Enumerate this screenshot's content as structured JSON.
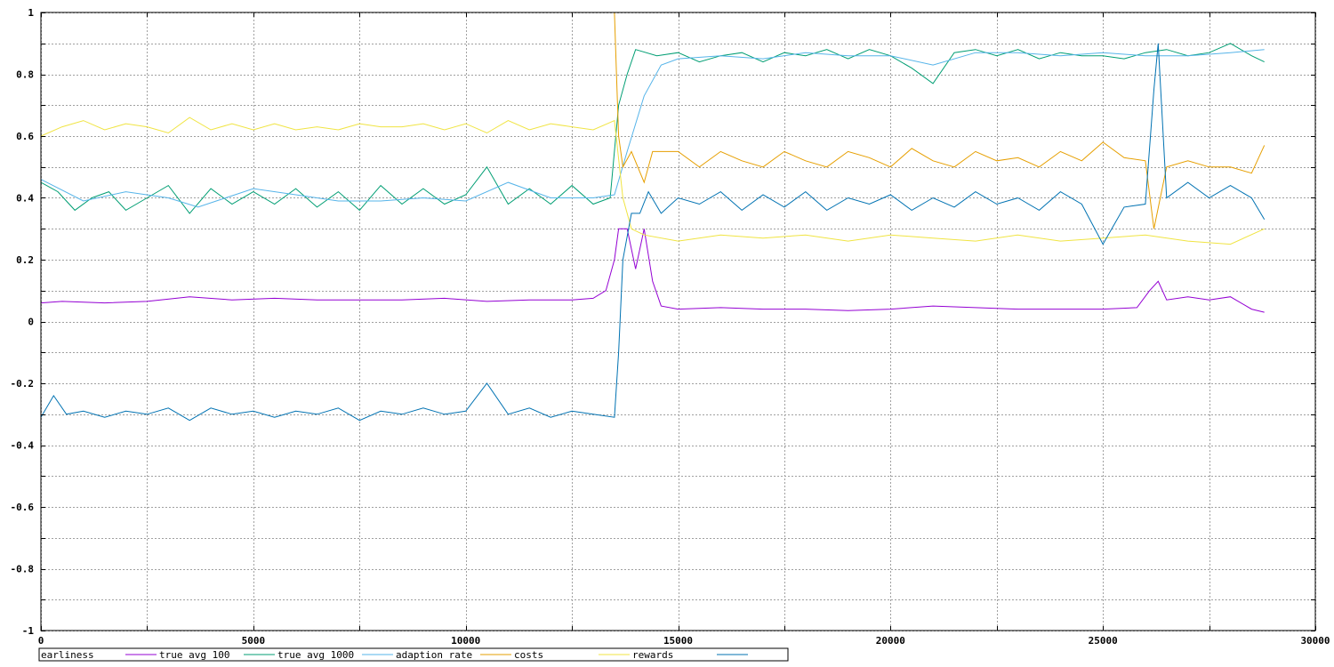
{
  "chart_data": {
    "type": "line",
    "title": "",
    "xlabel": "",
    "ylabel": "",
    "xlim": [
      0,
      30000
    ],
    "ylim": [
      -1,
      1
    ],
    "grid": true,
    "legend_position": "bottom",
    "x_ticks": [
      {
        "value": 0,
        "label": "0"
      },
      {
        "value": 5000,
        "label": "5000"
      },
      {
        "value": 10000,
        "label": "10000"
      },
      {
        "value": 15000,
        "label": "15000"
      },
      {
        "value": 20000,
        "label": "20000"
      },
      {
        "value": 25000,
        "label": "25000"
      },
      {
        "value": 30000,
        "label": "30000"
      }
    ],
    "y_ticks": [
      {
        "value": 1,
        "label": "1"
      },
      {
        "value": 0.8,
        "label": "0.8"
      },
      {
        "value": 0.6,
        "label": "0.6"
      },
      {
        "value": 0.4,
        "label": "0.4"
      },
      {
        "value": 0.2,
        "label": "0.2"
      },
      {
        "value": 0,
        "label": "0"
      },
      {
        "value": -0.2,
        "label": "-0.2"
      },
      {
        "value": -0.4,
        "label": "-0.4"
      },
      {
        "value": -0.6,
        "label": "-0.6"
      },
      {
        "value": -0.8,
        "label": "-0.8"
      },
      {
        "value": -1,
        "label": "-1"
      }
    ],
    "series": [
      {
        "name": "earliness",
        "color": "#9400d3",
        "points": [
          [
            0,
            0.06
          ],
          [
            500,
            0.065
          ],
          [
            1500,
            0.06
          ],
          [
            2500,
            0.065
          ],
          [
            3500,
            0.08
          ],
          [
            4500,
            0.07
          ],
          [
            5500,
            0.075
          ],
          [
            6500,
            0.07
          ],
          [
            7500,
            0.07
          ],
          [
            8500,
            0.07
          ],
          [
            9500,
            0.075
          ],
          [
            10500,
            0.065
          ],
          [
            11500,
            0.07
          ],
          [
            12500,
            0.07
          ],
          [
            13000,
            0.075
          ],
          [
            13300,
            0.1
          ],
          [
            13500,
            0.2
          ],
          [
            13600,
            0.3
          ],
          [
            13800,
            0.3
          ],
          [
            14000,
            0.17
          ],
          [
            14200,
            0.3
          ],
          [
            14400,
            0.13
          ],
          [
            14600,
            0.05
          ],
          [
            15000,
            0.04
          ],
          [
            16000,
            0.045
          ],
          [
            17000,
            0.04
          ],
          [
            18000,
            0.04
          ],
          [
            19000,
            0.035
          ],
          [
            20000,
            0.04
          ],
          [
            21000,
            0.05
          ],
          [
            22000,
            0.045
          ],
          [
            23000,
            0.04
          ],
          [
            24000,
            0.04
          ],
          [
            25000,
            0.04
          ],
          [
            25800,
            0.045
          ],
          [
            26100,
            0.1
          ],
          [
            26300,
            0.13
          ],
          [
            26500,
            0.07
          ],
          [
            27000,
            0.08
          ],
          [
            27500,
            0.07
          ],
          [
            28000,
            0.08
          ],
          [
            28500,
            0.04
          ],
          [
            28800,
            0.03
          ]
        ]
      },
      {
        "name": "true avg 100",
        "color": "#009e73",
        "points": [
          [
            0,
            0.45
          ],
          [
            400,
            0.42
          ],
          [
            800,
            0.36
          ],
          [
            1200,
            0.4
          ],
          [
            1600,
            0.42
          ],
          [
            2000,
            0.36
          ],
          [
            2500,
            0.4
          ],
          [
            3000,
            0.44
          ],
          [
            3500,
            0.35
          ],
          [
            4000,
            0.43
          ],
          [
            4500,
            0.38
          ],
          [
            5000,
            0.42
          ],
          [
            5500,
            0.38
          ],
          [
            6000,
            0.43
          ],
          [
            6500,
            0.37
          ],
          [
            7000,
            0.42
          ],
          [
            7500,
            0.36
          ],
          [
            8000,
            0.44
          ],
          [
            8500,
            0.38
          ],
          [
            9000,
            0.43
          ],
          [
            9500,
            0.38
          ],
          [
            10000,
            0.41
          ],
          [
            10500,
            0.5
          ],
          [
            11000,
            0.38
          ],
          [
            11500,
            0.43
          ],
          [
            12000,
            0.38
          ],
          [
            12500,
            0.44
          ],
          [
            13000,
            0.38
          ],
          [
            13400,
            0.4
          ],
          [
            13600,
            0.7
          ],
          [
            13800,
            0.8
          ],
          [
            14000,
            0.88
          ],
          [
            14500,
            0.86
          ],
          [
            15000,
            0.87
          ],
          [
            15500,
            0.84
          ],
          [
            16000,
            0.86
          ],
          [
            16500,
            0.87
          ],
          [
            17000,
            0.84
          ],
          [
            17500,
            0.87
          ],
          [
            18000,
            0.86
          ],
          [
            18500,
            0.88
          ],
          [
            19000,
            0.85
          ],
          [
            19500,
            0.88
          ],
          [
            20000,
            0.86
          ],
          [
            20500,
            0.82
          ],
          [
            21000,
            0.77
          ],
          [
            21500,
            0.87
          ],
          [
            22000,
            0.88
          ],
          [
            22500,
            0.86
          ],
          [
            23000,
            0.88
          ],
          [
            23500,
            0.85
          ],
          [
            24000,
            0.87
          ],
          [
            24500,
            0.86
          ],
          [
            25000,
            0.86
          ],
          [
            25500,
            0.85
          ],
          [
            26000,
            0.87
          ],
          [
            26500,
            0.88
          ],
          [
            27000,
            0.86
          ],
          [
            27500,
            0.87
          ],
          [
            28000,
            0.9
          ],
          [
            28500,
            0.86
          ],
          [
            28800,
            0.84
          ]
        ]
      },
      {
        "name": "true avg 1000",
        "color": "#56b4e9",
        "points": [
          [
            0,
            0.46
          ],
          [
            1000,
            0.39
          ],
          [
            2000,
            0.42
          ],
          [
            3000,
            0.4
          ],
          [
            3700,
            0.37
          ],
          [
            5000,
            0.43
          ],
          [
            6000,
            0.41
          ],
          [
            7000,
            0.39
          ],
          [
            8000,
            0.39
          ],
          [
            9000,
            0.4
          ],
          [
            10000,
            0.39
          ],
          [
            11000,
            0.45
          ],
          [
            12000,
            0.4
          ],
          [
            13000,
            0.4
          ],
          [
            13500,
            0.41
          ],
          [
            13800,
            0.55
          ],
          [
            14200,
            0.73
          ],
          [
            14600,
            0.83
          ],
          [
            15000,
            0.85
          ],
          [
            16000,
            0.86
          ],
          [
            17000,
            0.85
          ],
          [
            18000,
            0.87
          ],
          [
            19000,
            0.86
          ],
          [
            20000,
            0.86
          ],
          [
            21000,
            0.83
          ],
          [
            22000,
            0.87
          ],
          [
            23000,
            0.87
          ],
          [
            24000,
            0.86
          ],
          [
            25000,
            0.87
          ],
          [
            26000,
            0.86
          ],
          [
            27000,
            0.86
          ],
          [
            28000,
            0.87
          ],
          [
            28800,
            0.88
          ]
        ]
      },
      {
        "name": "adaption rate",
        "color": "#e69f00",
        "points": [
          [
            12400,
            1
          ],
          [
            13500,
            1
          ],
          [
            13550,
            0.8
          ],
          [
            13600,
            0.6
          ],
          [
            13700,
            0.5
          ],
          [
            13900,
            0.55
          ],
          [
            14200,
            0.45
          ],
          [
            14400,
            0.55
          ],
          [
            15000,
            0.55
          ],
          [
            15500,
            0.5
          ],
          [
            16000,
            0.55
          ],
          [
            16500,
            0.52
          ],
          [
            17000,
            0.5
          ],
          [
            17500,
            0.55
          ],
          [
            18000,
            0.52
          ],
          [
            18500,
            0.5
          ],
          [
            19000,
            0.55
          ],
          [
            19500,
            0.53
          ],
          [
            20000,
            0.5
          ],
          [
            20500,
            0.56
          ],
          [
            21000,
            0.52
          ],
          [
            21500,
            0.5
          ],
          [
            22000,
            0.55
          ],
          [
            22500,
            0.52
          ],
          [
            23000,
            0.53
          ],
          [
            23500,
            0.5
          ],
          [
            24000,
            0.55
          ],
          [
            24500,
            0.52
          ],
          [
            25000,
            0.58
          ],
          [
            25500,
            0.53
          ],
          [
            26000,
            0.52
          ],
          [
            26200,
            0.3
          ],
          [
            26500,
            0.5
          ],
          [
            27000,
            0.52
          ],
          [
            27500,
            0.5
          ],
          [
            28000,
            0.5
          ],
          [
            28500,
            0.48
          ],
          [
            28800,
            0.57
          ]
        ]
      },
      {
        "name": "costs",
        "color": "#f0e442",
        "points": [
          [
            0,
            0.6
          ],
          [
            500,
            0.63
          ],
          [
            1000,
            0.65
          ],
          [
            1500,
            0.62
          ],
          [
            2000,
            0.64
          ],
          [
            2500,
            0.63
          ],
          [
            3000,
            0.61
          ],
          [
            3500,
            0.66
          ],
          [
            4000,
            0.62
          ],
          [
            4500,
            0.64
          ],
          [
            5000,
            0.62
          ],
          [
            5500,
            0.64
          ],
          [
            6000,
            0.62
          ],
          [
            6500,
            0.63
          ],
          [
            7000,
            0.62
          ],
          [
            7500,
            0.64
          ],
          [
            8000,
            0.63
          ],
          [
            8500,
            0.63
          ],
          [
            9000,
            0.64
          ],
          [
            9500,
            0.62
          ],
          [
            10000,
            0.64
          ],
          [
            10500,
            0.61
          ],
          [
            11000,
            0.65
          ],
          [
            11500,
            0.62
          ],
          [
            12000,
            0.64
          ],
          [
            12500,
            0.63
          ],
          [
            13000,
            0.62
          ],
          [
            13500,
            0.65
          ],
          [
            13700,
            0.4
          ],
          [
            13900,
            0.3
          ],
          [
            14200,
            0.28
          ],
          [
            15000,
            0.26
          ],
          [
            16000,
            0.28
          ],
          [
            17000,
            0.27
          ],
          [
            18000,
            0.28
          ],
          [
            19000,
            0.26
          ],
          [
            20000,
            0.28
          ],
          [
            21000,
            0.27
          ],
          [
            22000,
            0.26
          ],
          [
            23000,
            0.28
          ],
          [
            24000,
            0.26
          ],
          [
            25000,
            0.27
          ],
          [
            26000,
            0.28
          ],
          [
            27000,
            0.26
          ],
          [
            28000,
            0.25
          ],
          [
            28800,
            0.3
          ]
        ]
      },
      {
        "name": "rewards",
        "color": "#0072b2",
        "points": [
          [
            0,
            -0.31
          ],
          [
            300,
            -0.24
          ],
          [
            600,
            -0.3
          ],
          [
            1000,
            -0.29
          ],
          [
            1500,
            -0.31
          ],
          [
            2000,
            -0.29
          ],
          [
            2500,
            -0.3
          ],
          [
            3000,
            -0.28
          ],
          [
            3500,
            -0.32
          ],
          [
            4000,
            -0.28
          ],
          [
            4500,
            -0.3
          ],
          [
            5000,
            -0.29
          ],
          [
            5500,
            -0.31
          ],
          [
            6000,
            -0.29
          ],
          [
            6500,
            -0.3
          ],
          [
            7000,
            -0.28
          ],
          [
            7500,
            -0.32
          ],
          [
            8000,
            -0.29
          ],
          [
            8500,
            -0.3
          ],
          [
            9000,
            -0.28
          ],
          [
            9500,
            -0.3
          ],
          [
            10000,
            -0.29
          ],
          [
            10500,
            -0.2
          ],
          [
            11000,
            -0.3
          ],
          [
            11500,
            -0.28
          ],
          [
            12000,
            -0.31
          ],
          [
            12500,
            -0.29
          ],
          [
            13000,
            -0.3
          ],
          [
            13500,
            -0.31
          ],
          [
            13600,
            -0.1
          ],
          [
            13700,
            0.2
          ],
          [
            13900,
            0.35
          ],
          [
            14100,
            0.35
          ],
          [
            14300,
            0.42
          ],
          [
            14600,
            0.35
          ],
          [
            15000,
            0.4
          ],
          [
            15500,
            0.38
          ],
          [
            16000,
            0.42
          ],
          [
            16500,
            0.36
          ],
          [
            17000,
            0.41
          ],
          [
            17500,
            0.37
          ],
          [
            18000,
            0.42
          ],
          [
            18500,
            0.36
          ],
          [
            19000,
            0.4
          ],
          [
            19500,
            0.38
          ],
          [
            20000,
            0.41
          ],
          [
            20500,
            0.36
          ],
          [
            21000,
            0.4
          ],
          [
            21500,
            0.37
          ],
          [
            22000,
            0.42
          ],
          [
            22500,
            0.38
          ],
          [
            23000,
            0.4
          ],
          [
            23500,
            0.36
          ],
          [
            24000,
            0.42
          ],
          [
            24500,
            0.38
          ],
          [
            25000,
            0.25
          ],
          [
            25500,
            0.37
          ],
          [
            26000,
            0.38
          ],
          [
            26200,
            0.75
          ],
          [
            26300,
            0.9
          ],
          [
            26500,
            0.4
          ],
          [
            27000,
            0.45
          ],
          [
            27500,
            0.4
          ],
          [
            28000,
            0.44
          ],
          [
            28500,
            0.4
          ],
          [
            28800,
            0.33
          ]
        ]
      }
    ]
  }
}
